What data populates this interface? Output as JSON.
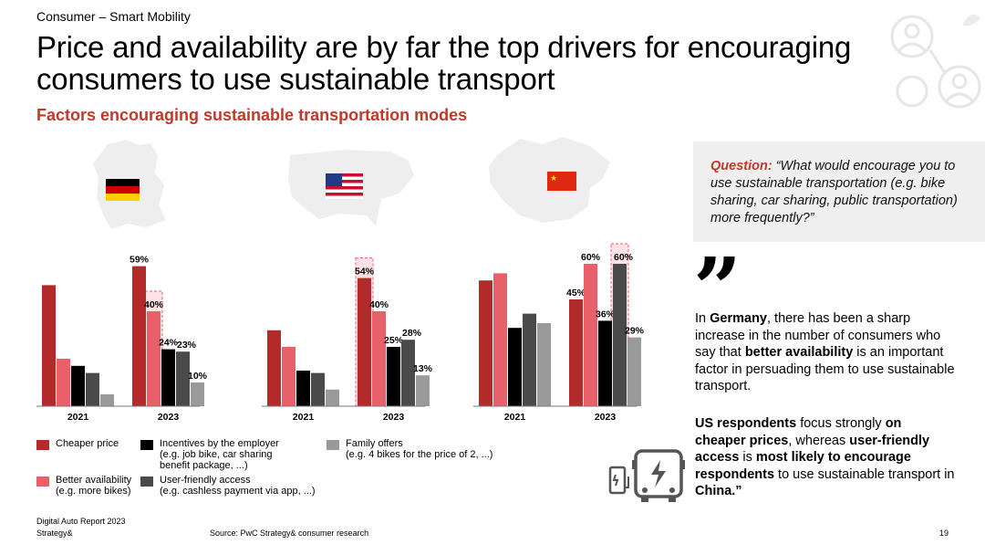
{
  "header": {
    "section": "Consumer – Smart Mobility",
    "title": "Price and availability are by far the top drivers for encouraging consumers to use sustainable transport",
    "subtitle": "Factors encouraging sustainable transportation modes"
  },
  "colors": {
    "cheaper_price": "#b22a2a",
    "better_availability": "#e8606a",
    "incentives": "#000000",
    "user_friendly": "#4a4a4a",
    "family_offers": "#9a9a9a",
    "accent": "#c0392b"
  },
  "chart_data": [
    {
      "type": "bar",
      "country": "Germany",
      "icon": "germany-flag-map-icon",
      "categories": [
        "2021",
        "2023"
      ],
      "series": [
        {
          "name": "Cheaper price",
          "values": [
            51,
            59
          ]
        },
        {
          "name": "Better availability (e.g. more bikes)",
          "values": [
            20,
            40
          ]
        },
        {
          "name": "Incentives by the employer (e.g. job bike, car sharing benefit package, ...)",
          "values": [
            17,
            24
          ]
        },
        {
          "name": "User-friendly access (e.g. cashless payment via app, ...)",
          "values": [
            14,
            23
          ]
        },
        {
          "name": "Family offers (e.g. 4 bikes for the price of 2, ...)",
          "values": [
            5,
            10
          ]
        }
      ],
      "labels_2023": [
        "59%",
        "40%",
        "24%",
        "23%",
        "10%"
      ],
      "highlighted_series": "Better availability (e.g. more bikes)",
      "ylim": [
        0,
        60
      ]
    },
    {
      "type": "bar",
      "country": "United States",
      "icon": "usa-flag-map-icon",
      "categories": [
        "2021",
        "2023"
      ],
      "series": [
        {
          "name": "Cheaper price",
          "values": [
            32,
            54
          ]
        },
        {
          "name": "Better availability (e.g. more bikes)",
          "values": [
            25,
            40
          ]
        },
        {
          "name": "Incentives by the employer (e.g. job bike, car sharing benefit package, ...)",
          "values": [
            15,
            25
          ]
        },
        {
          "name": "User-friendly access (e.g. cashless payment via app, ...)",
          "values": [
            14,
            28
          ]
        },
        {
          "name": "Family offers (e.g. 4 bikes for the price of 2, ...)",
          "values": [
            7,
            13
          ]
        }
      ],
      "labels_2023": [
        "54%",
        "40%",
        "25%",
        "28%",
        "13%"
      ],
      "highlighted_series": "Cheaper price",
      "ylim": [
        0,
        60
      ]
    },
    {
      "type": "bar",
      "country": "China",
      "icon": "china-flag-map-icon",
      "categories": [
        "2021",
        "2023"
      ],
      "series": [
        {
          "name": "Cheaper price",
          "values": [
            53,
            45
          ]
        },
        {
          "name": "Better availability (e.g. more bikes)",
          "values": [
            56,
            60
          ]
        },
        {
          "name": "Incentives by the employer (e.g. job bike, car sharing benefit package, ...)",
          "values": [
            33,
            36
          ]
        },
        {
          "name": "User-friendly access (e.g. cashless payment via app, ...)",
          "values": [
            39,
            60
          ]
        },
        {
          "name": "Family offers (e.g. 4 bikes for the price of 2, ...)",
          "values": [
            35,
            29
          ]
        }
      ],
      "labels_2023": [
        "45%",
        "60%",
        "36%",
        "60%",
        "29%"
      ],
      "highlighted_series": "User-friendly access (e.g. cashless payment via app, ...)",
      "ylim": [
        0,
        60
      ]
    }
  ],
  "legend": {
    "cheaper_price": "Cheaper price",
    "better_availability_1": "Better availability",
    "better_availability_2": "(e.g. more bikes)",
    "incentives_1": "Incentives by the employer",
    "incentives_2": "(e.g. job bike, car sharing",
    "incentives_3": "benefit package, ...)",
    "user_friendly_1": "User-friendly access",
    "user_friendly_2": "(e.g. cashless payment via app, ...)",
    "family_1": "Family offers",
    "family_2": "(e.g. 4 bikes for the price of 2, ...)"
  },
  "question": {
    "label": "Question:",
    "text": "“What would encourage you to use sustainable transportation (e.g. bike sharing, car sharing, public transportation) more frequently?”"
  },
  "insight": {
    "p1_a": "In ",
    "p1_b": "Germany",
    "p1_c": ", there has been a sharp increase in the number of consumers who say that ",
    "p1_d": "better availability",
    "p1_e": " is an important factor in persuading them to use sustainable transport.",
    "p2_a": "US respondents",
    "p2_b": " focus strongly ",
    "p2_c": "on cheaper prices",
    "p2_d": ", whereas ",
    "p2_e": "user-friendly access",
    "p2_f": " is ",
    "p2_g": "most likely to encourage respondents",
    "p2_h": " to use sustainable transport in ",
    "p2_i": "China.”"
  },
  "footer": {
    "report": "Digital Auto Report 2023",
    "brand": "Strategy&",
    "source": "Source: PwC Strategy& consumer research",
    "page": "19"
  }
}
